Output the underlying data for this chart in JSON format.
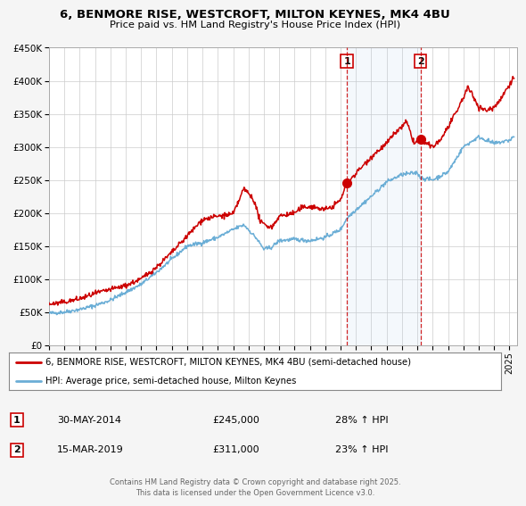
{
  "title": "6, BENMORE RISE, WESTCROFT, MILTON KEYNES, MK4 4BU",
  "subtitle": "Price paid vs. HM Land Registry's House Price Index (HPI)",
  "ylim": [
    0,
    450000
  ],
  "yticks": [
    0,
    50000,
    100000,
    150000,
    200000,
    250000,
    300000,
    350000,
    400000,
    450000
  ],
  "ytick_labels": [
    "£0",
    "£50K",
    "£100K",
    "£150K",
    "£200K",
    "£250K",
    "£300K",
    "£350K",
    "£400K",
    "£450K"
  ],
  "xlim_start": 1995.0,
  "xlim_end": 2025.5,
  "xticks": [
    1995,
    1996,
    1997,
    1998,
    1999,
    2000,
    2001,
    2002,
    2003,
    2004,
    2005,
    2006,
    2007,
    2008,
    2009,
    2010,
    2011,
    2012,
    2013,
    2014,
    2015,
    2016,
    2017,
    2018,
    2019,
    2020,
    2021,
    2022,
    2023,
    2024,
    2025
  ],
  "sale1_date": 2014.41,
  "sale1_price": 245000,
  "sale1_label": "1",
  "sale2_date": 2019.21,
  "sale2_price": 311000,
  "sale2_label": "2",
  "hpi_color": "#6baed6",
  "price_color": "#cc0000",
  "marker_color": "#cc0000",
  "vline_color": "#cc0000",
  "shade_color": "#ddeeff",
  "legend_line1": "6, BENMORE RISE, WESTCROFT, MILTON KEYNES, MK4 4BU (semi-detached house)",
  "legend_line2": "HPI: Average price, semi-detached house, Milton Keynes",
  "table_row1_num": "1",
  "table_row1_date": "30-MAY-2014",
  "table_row1_price": "£245,000",
  "table_row1_hpi": "28% ↑ HPI",
  "table_row2_num": "2",
  "table_row2_date": "15-MAR-2019",
  "table_row2_price": "£311,000",
  "table_row2_hpi": "23% ↑ HPI",
  "footer": "Contains HM Land Registry data © Crown copyright and database right 2025.\nThis data is licensed under the Open Government Licence v3.0.",
  "background_color": "#f5f5f5",
  "plot_bg_color": "#ffffff",
  "grid_color": "#cccccc"
}
